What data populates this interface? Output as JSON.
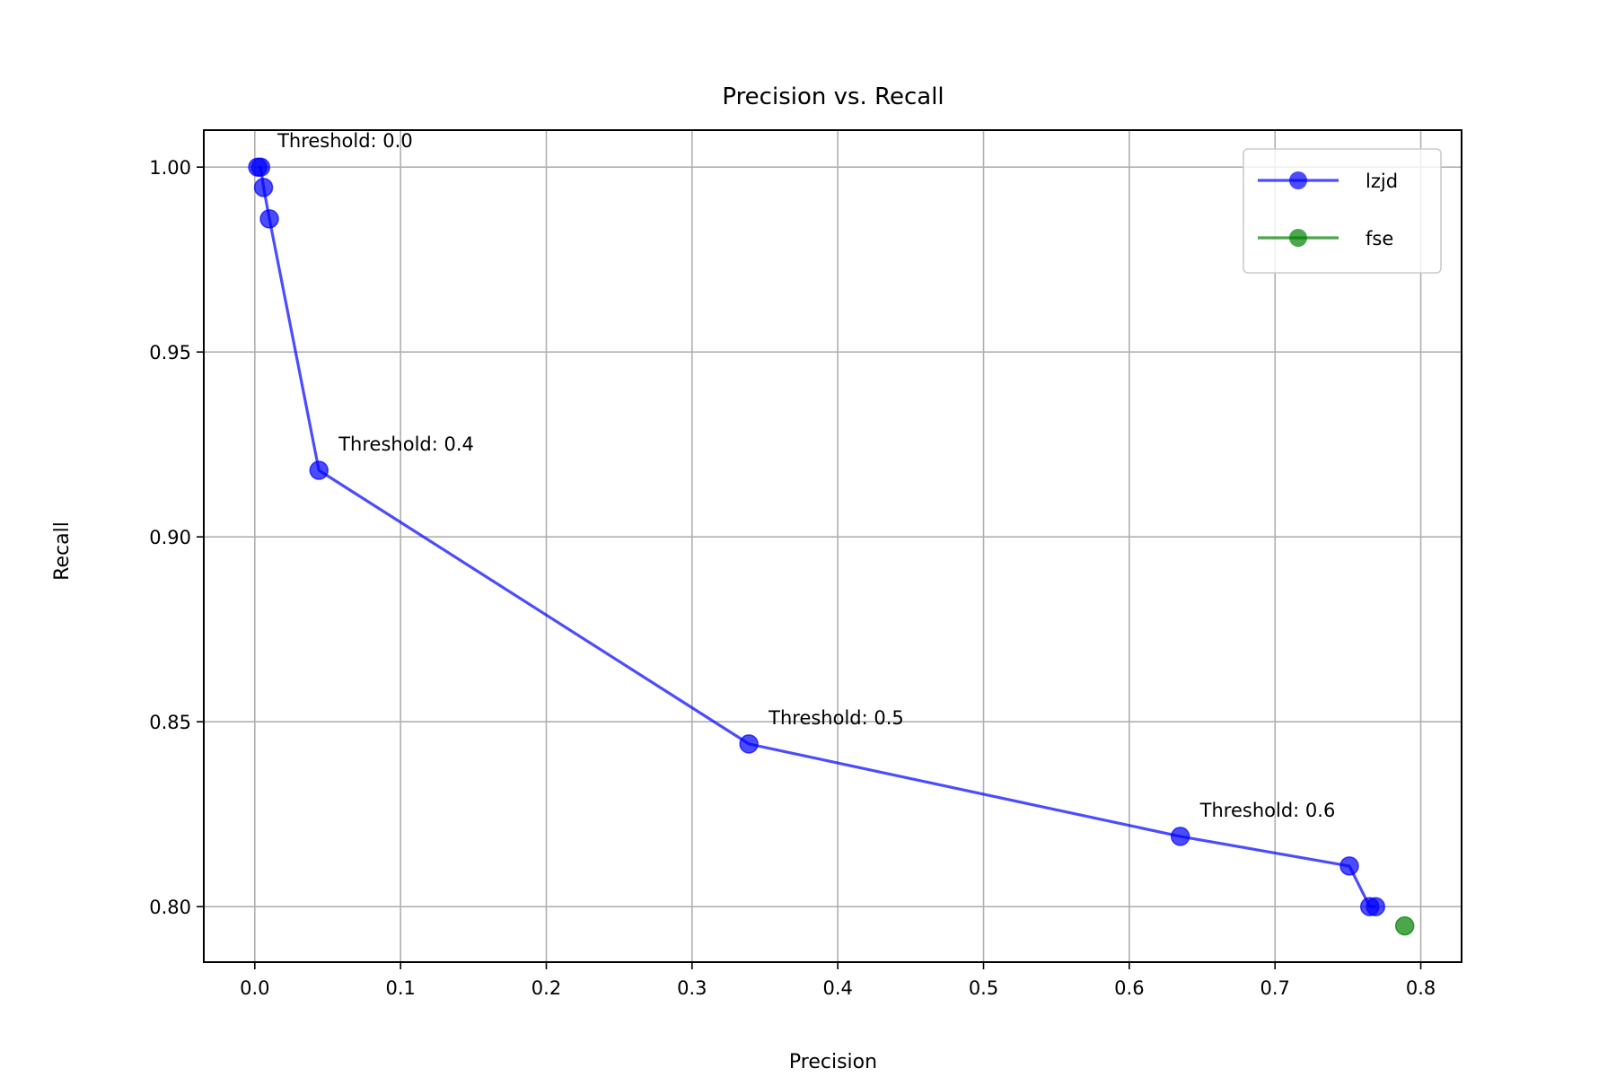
{
  "chart_data": {
    "type": "line",
    "title": "Precision vs. Recall",
    "xlabel": "Precision",
    "ylabel": "Recall",
    "xlim": [
      -0.035,
      0.828
    ],
    "ylim": [
      0.785,
      1.01
    ],
    "xticks": [
      0.0,
      0.1,
      0.2,
      0.3,
      0.4,
      0.5,
      0.6,
      0.7,
      0.8
    ],
    "xtick_labels": [
      "0.0",
      "0.1",
      "0.2",
      "0.3",
      "0.4",
      "0.5",
      "0.6",
      "0.7",
      "0.8"
    ],
    "yticks": [
      0.8,
      0.85,
      0.9,
      0.95,
      1.0
    ],
    "ytick_labels": [
      "0.80",
      "0.85",
      "0.90",
      "0.95",
      "1.00"
    ],
    "grid": true,
    "legend_position": "top-right",
    "series": [
      {
        "name": "lzjd",
        "color": "#0000ff",
        "points": [
          {
            "x": 0.002,
            "y": 1.0
          },
          {
            "x": 0.004,
            "y": 1.0
          },
          {
            "x": 0.006,
            "y": 0.9945
          },
          {
            "x": 0.01,
            "y": 0.986
          },
          {
            "x": 0.044,
            "y": 0.918
          },
          {
            "x": 0.339,
            "y": 0.844
          },
          {
            "x": 0.635,
            "y": 0.819
          },
          {
            "x": 0.751,
            "y": 0.811
          },
          {
            "x": 0.765,
            "y": 0.8
          },
          {
            "x": 0.769,
            "y": 0.8
          }
        ]
      },
      {
        "name": "fse",
        "color": "#008000",
        "points": [
          {
            "x": 0.789,
            "y": 0.7948
          }
        ]
      }
    ],
    "annotations": [
      {
        "text": "Threshold: 0.0",
        "x": 0.002,
        "y": 1.0
      },
      {
        "text": "Threshold: 0.4",
        "x": 0.044,
        "y": 0.918
      },
      {
        "text": "Threshold: 0.5",
        "x": 0.339,
        "y": 0.844
      },
      {
        "text": "Threshold: 0.6",
        "x": 0.635,
        "y": 0.819
      }
    ]
  }
}
